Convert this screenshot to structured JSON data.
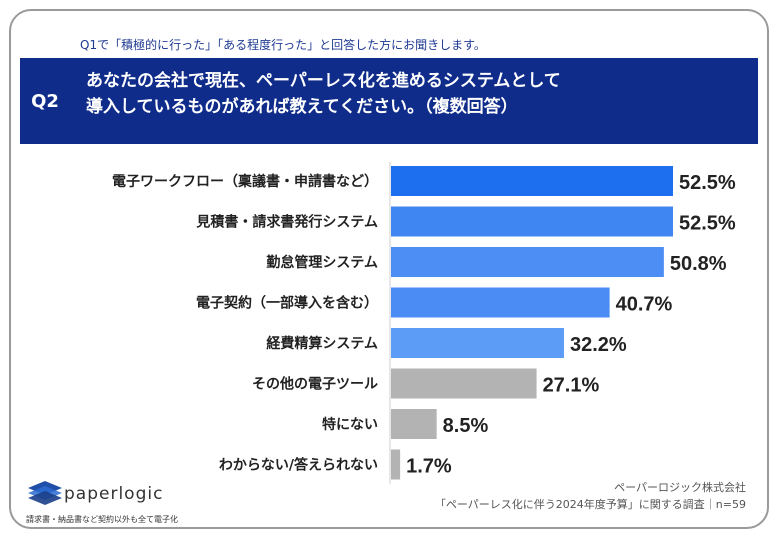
{
  "header": {
    "subquestion": "Q1で「積極的に行った」「ある程度行った」と回答した方にお聞きします。",
    "q_label": "Q2",
    "question_line1": "あなたの会社で現在、ペーパーレス化を進めるシステムとして",
    "question_line2": "導入しているものがあれば教えてください。（複数回答）"
  },
  "chart_data": {
    "type": "bar",
    "orientation": "horizontal",
    "categories": [
      "電子ワークフロー（稟議書・申請書など）",
      "見積書・請求書発行システム",
      "勤怠管理システム",
      "電子契約（一部導入を含む）",
      "経費精算システム",
      "その他の電子ツール",
      "特にない",
      "わからない/答えられない"
    ],
    "values": [
      52.5,
      52.5,
      50.8,
      40.7,
      32.2,
      27.1,
      8.5,
      1.7
    ],
    "value_labels": [
      "52.5%",
      "52.5%",
      "50.8%",
      "40.7%",
      "32.2%",
      "27.1%",
      "8.5%",
      "1.7%"
    ],
    "bar_colors": [
      "#1e6ff0",
      "#3f86f3",
      "#4d8ef4",
      "#4a8cf4",
      "#5c9cf6",
      "#b3b3b3",
      "#b3b3b3",
      "#b3b3b3"
    ],
    "xlim": [
      0,
      60
    ],
    "grid": false
  },
  "footer": {
    "logo_text": "paperlogic",
    "logo_tagline": "請求書・納品書など契約以外も全て電子化",
    "source_company": "ペーパーロジック株式会社",
    "source_survey": "「ペーパーレス化に伴う2024年度予算」に関する調査｜n=59"
  }
}
